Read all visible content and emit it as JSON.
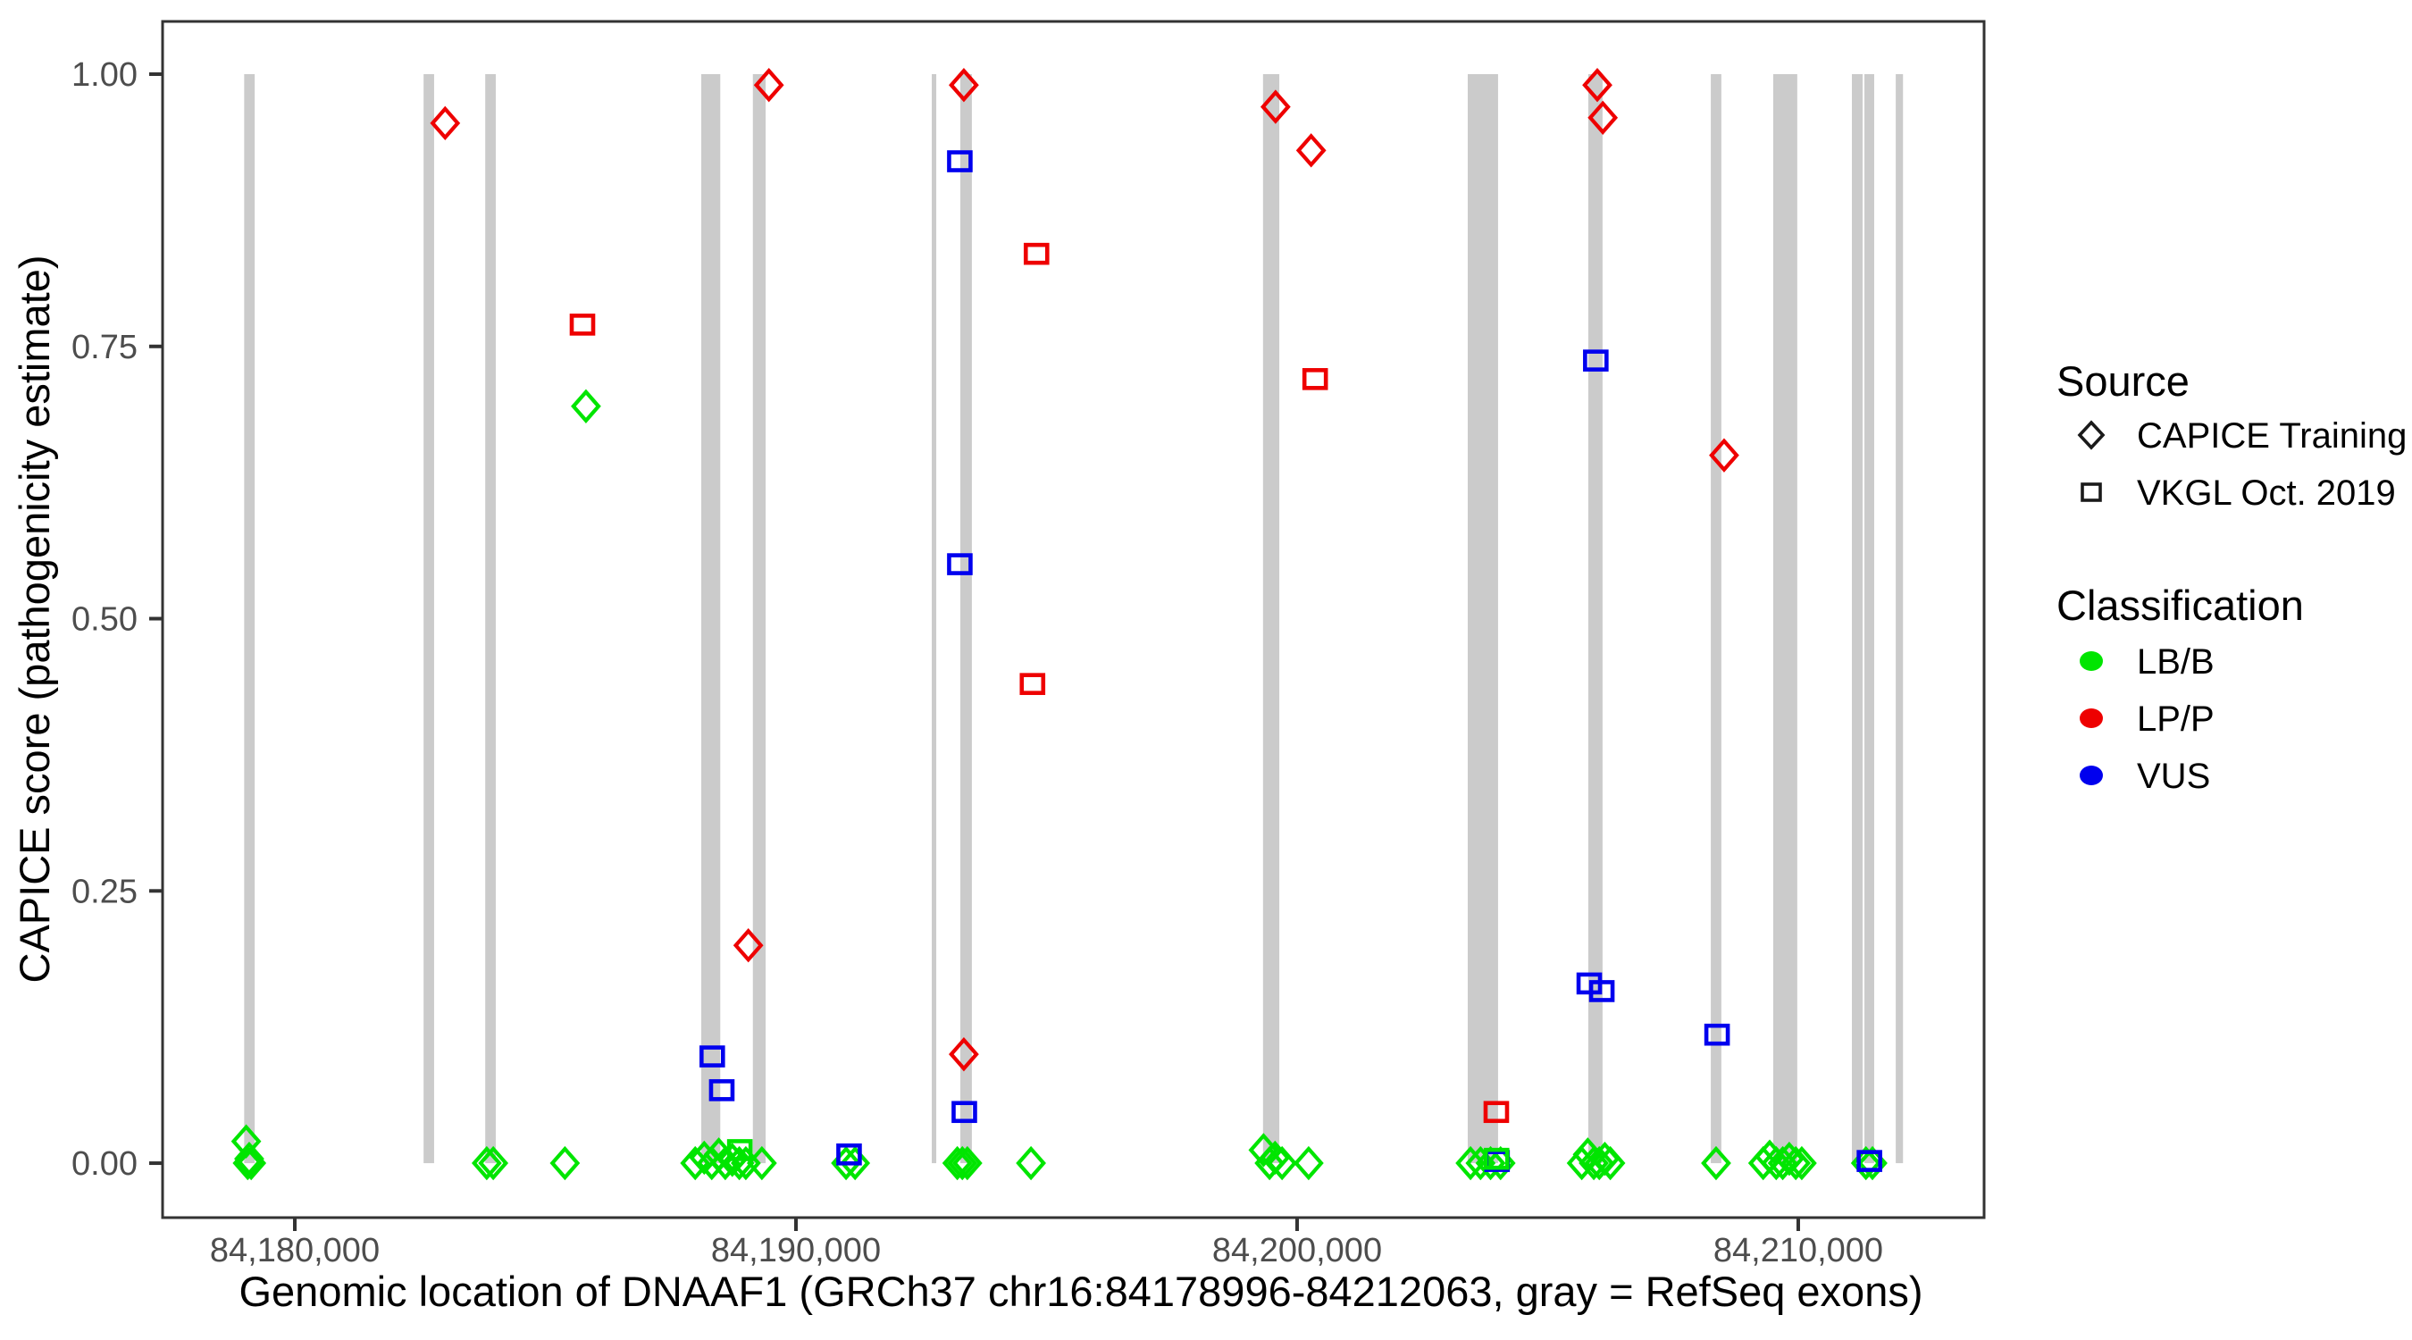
{
  "figure": {
    "background": "#ffffff",
    "panel_border_color": "#333333",
    "tick_color": "#333333",
    "tick_label_color": "#4d4d4d",
    "exon_color": "#cbcbcb"
  },
  "axes": {
    "x": {
      "title": "Genomic location of DNAAF1 (GRCh37 chr16:84178996-84212063, gray = RefSeq exons)",
      "domain": [
        84177362,
        84213708
      ],
      "ticks": [
        {
          "label": "84,180,000",
          "value": 84180000
        },
        {
          "label": "84,190,000",
          "value": 84190000
        },
        {
          "label": "84,200,000",
          "value": 84200000
        },
        {
          "label": "84,210,000",
          "value": 84210000
        }
      ]
    },
    "y": {
      "title": "CAPICE score (pathogenicity estimate)",
      "domain": [
        -0.05,
        1.0484
      ],
      "ticks": [
        {
          "label": "0.00",
          "value": 0.0
        },
        {
          "label": "0.25",
          "value": 0.25
        },
        {
          "label": "0.50",
          "value": 0.5
        },
        {
          "label": "0.75",
          "value": 0.75
        },
        {
          "label": "1.00",
          "value": 1.0
        }
      ]
    }
  },
  "legend": {
    "source": {
      "title": "Source",
      "items": [
        {
          "label": "CAPICE Training",
          "shape": "diamond",
          "color": "#1a1a1a"
        },
        {
          "label": "VKGL Oct. 2019",
          "shape": "square",
          "color": "#1a1a1a"
        }
      ]
    },
    "classification": {
      "title": "Classification",
      "items": [
        {
          "label": "LB/B",
          "color": "#00e500"
        },
        {
          "label": "LP/P",
          "color": "#ee0000"
        },
        {
          "label": "VUS",
          "color": "#0000ee"
        }
      ]
    }
  },
  "chart_data": {
    "type": "scatter",
    "x_unit": "genomic position (bp, GRCh37 chr16)",
    "y_unit": "CAPICE score",
    "grid": false,
    "legend_position": "right",
    "exons": [
      [
        84178990,
        84179200
      ],
      [
        84182570,
        84182780
      ],
      [
        84183800,
        84184010
      ],
      [
        84188110,
        84188490
      ],
      [
        84189140,
        84189395
      ],
      [
        84192710,
        84192800
      ],
      [
        84193280,
        84193510
      ],
      [
        84199320,
        84199645
      ],
      [
        84203405,
        84204010
      ],
      [
        84205810,
        84206095
      ],
      [
        84208255,
        84208465
      ],
      [
        84209500,
        84209980
      ],
      [
        84211070,
        84211285
      ],
      [
        84211320,
        84211515
      ],
      [
        84211945,
        84212090
      ]
    ],
    "series": [
      {
        "name": "CAPICE Training LB/B",
        "source": "CAPICE Training",
        "classification": "LB/B",
        "shape": "diamond",
        "color": "#00e500",
        "points": [
          [
            84179030,
            0.02
          ],
          [
            84179060,
            0.0
          ],
          [
            84179090,
            0.004
          ],
          [
            84179130,
            0.0
          ],
          [
            84183830,
            0.0
          ],
          [
            84183960,
            0.0
          ],
          [
            84185390,
            0.0
          ],
          [
            84185810,
            0.695
          ],
          [
            84187990,
            0.0
          ],
          [
            84188170,
            0.005
          ],
          [
            84188320,
            0.0
          ],
          [
            84188460,
            0.008
          ],
          [
            84188590,
            0.0
          ],
          [
            84188730,
            0.003
          ],
          [
            84188870,
            0.0
          ],
          [
            84189000,
            0.0
          ],
          [
            84189320,
            0.0
          ],
          [
            84191000,
            0.0
          ],
          [
            84191180,
            0.0
          ],
          [
            84193220,
            0.0
          ],
          [
            84193320,
            0.0
          ],
          [
            84193420,
            0.0
          ],
          [
            84194690,
            0.0
          ],
          [
            84199330,
            0.012
          ],
          [
            84199450,
            0.0
          ],
          [
            84199560,
            0.005
          ],
          [
            84199700,
            0.0
          ],
          [
            84200230,
            0.0
          ],
          [
            84203460,
            0.0
          ],
          [
            84203660,
            0.0
          ],
          [
            84203860,
            0.0
          ],
          [
            84204060,
            0.0
          ],
          [
            84205680,
            0.0
          ],
          [
            84205800,
            0.008
          ],
          [
            84205920,
            0.0
          ],
          [
            84206030,
            0.0
          ],
          [
            84206140,
            0.004
          ],
          [
            84206250,
            0.0
          ],
          [
            84208360,
            0.0
          ],
          [
            84209300,
            0.0
          ],
          [
            84209430,
            0.006
          ],
          [
            84209560,
            0.0
          ],
          [
            84209690,
            0.0
          ],
          [
            84209820,
            0.004
          ],
          [
            84209950,
            0.0
          ],
          [
            84210070,
            0.0
          ],
          [
            84211350,
            0.0
          ],
          [
            84211480,
            0.0
          ]
        ]
      },
      {
        "name": "CAPICE Training LP/P",
        "source": "CAPICE Training",
        "classification": "LP/P",
        "shape": "diamond",
        "color": "#ee0000",
        "points": [
          [
            84183000,
            0.955
          ],
          [
            84189050,
            0.2
          ],
          [
            84189460,
            0.99
          ],
          [
            84193350,
            0.99
          ],
          [
            84193350,
            0.1
          ],
          [
            84199570,
            0.97
          ],
          [
            84200280,
            0.93
          ],
          [
            84205990,
            0.99
          ],
          [
            84206100,
            0.96
          ],
          [
            84208520,
            0.65
          ]
        ]
      },
      {
        "name": "VKGL Oct. 2019 LP/P",
        "source": "VKGL Oct. 2019",
        "classification": "LP/P",
        "shape": "square",
        "color": "#ee0000",
        "points": [
          [
            84185740,
            0.77
          ],
          [
            84194800,
            0.835
          ],
          [
            84194720,
            0.44
          ],
          [
            84200360,
            0.72
          ],
          [
            84203975,
            0.047
          ]
        ]
      },
      {
        "name": "VKGL Oct. 2019 VUS",
        "source": "VKGL Oct. 2019",
        "classification": "VUS",
        "shape": "square",
        "color": "#0000ee",
        "points": [
          [
            84188330,
            0.098
          ],
          [
            84188520,
            0.067
          ],
          [
            84191060,
            0.008
          ],
          [
            84193270,
            0.92
          ],
          [
            84193270,
            0.55
          ],
          [
            84193360,
            0.047
          ],
          [
            84203990,
            0.002
          ],
          [
            84205830,
            0.165
          ],
          [
            84206080,
            0.158
          ],
          [
            84205960,
            0.737
          ],
          [
            84208380,
            0.118
          ],
          [
            84211420,
            0.002
          ]
        ]
      },
      {
        "name": "VKGL Oct. 2019 LB/B",
        "source": "VKGL Oct. 2019",
        "classification": "LB/B",
        "shape": "square",
        "color": "#00e500",
        "points": [
          [
            84188880,
            0.012
          ],
          [
            84203980,
            0.004
          ]
        ]
      }
    ]
  }
}
